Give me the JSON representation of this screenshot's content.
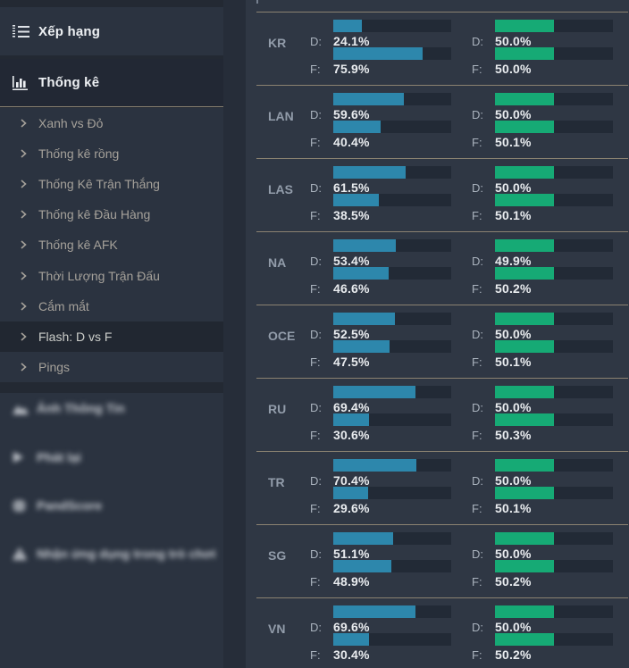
{
  "sidebar": {
    "ranking": {
      "label": "Xếp hạng"
    },
    "stats": {
      "label": "Thống kê"
    },
    "menu_items": [
      {
        "label": "Xanh vs Đỏ",
        "active": false
      },
      {
        "label": "Thống kê rồng",
        "active": false
      },
      {
        "label": "Thống Kê Trận Thắng",
        "active": false
      },
      {
        "label": "Thống kê Đầu Hàng",
        "active": false
      },
      {
        "label": "Thống kê AFK",
        "active": false
      },
      {
        "label": "Thời Lượng Trận Đấu",
        "active": false
      },
      {
        "label": "Cắm mắt",
        "active": false
      },
      {
        "label": "Flash: D vs F",
        "active": true
      },
      {
        "label": "Pings",
        "active": false
      }
    ],
    "blurred_items": [
      {
        "label": "Ảnh Thông Tin",
        "icon": "image-icon"
      },
      {
        "label": "Phát lại",
        "icon": "play-icon"
      },
      {
        "label": "PandScore",
        "icon": "globe-icon"
      },
      {
        "label": "Nhận ứng dụng trong trò chơi",
        "icon": "warning-icon"
      }
    ]
  },
  "stats_table": {
    "key_d": "D:",
    "key_f": "F:",
    "unit": "%"
  },
  "chart_data": {
    "type": "bar",
    "title": "Flash: D vs F",
    "categories": [
      "KR",
      "LAN",
      "LAS",
      "NA",
      "OCE",
      "RU",
      "TR",
      "SG",
      "VN"
    ],
    "series": [
      {
        "name": "D-blue",
        "color": "#2d87ac",
        "values": [
          24.1,
          59.6,
          61.5,
          53.4,
          52.5,
          69.4,
          70.4,
          51.1,
          69.6
        ]
      },
      {
        "name": "F-blue",
        "color": "#2d87ac",
        "values": [
          75.9,
          40.4,
          38.5,
          46.6,
          47.5,
          30.6,
          29.6,
          48.9,
          30.4
        ]
      },
      {
        "name": "D-green",
        "color": "#16aa75",
        "values": [
          50.0,
          50.0,
          50.0,
          49.9,
          50.0,
          50.0,
          50.0,
          50.0,
          50.0
        ]
      },
      {
        "name": "F-green",
        "color": "#16aa75",
        "values": [
          50.0,
          50.1,
          50.1,
          50.2,
          50.1,
          50.3,
          50.1,
          50.2,
          50.2
        ]
      }
    ],
    "xlim": [
      0,
      100
    ],
    "legend": false
  },
  "colors": {
    "blue": "#2d87ac",
    "green": "#16aa75",
    "track": "#222a36",
    "separator": "#8b8271",
    "main_bg": "#2f3744",
    "sidebar_bg": "#2b3340"
  }
}
